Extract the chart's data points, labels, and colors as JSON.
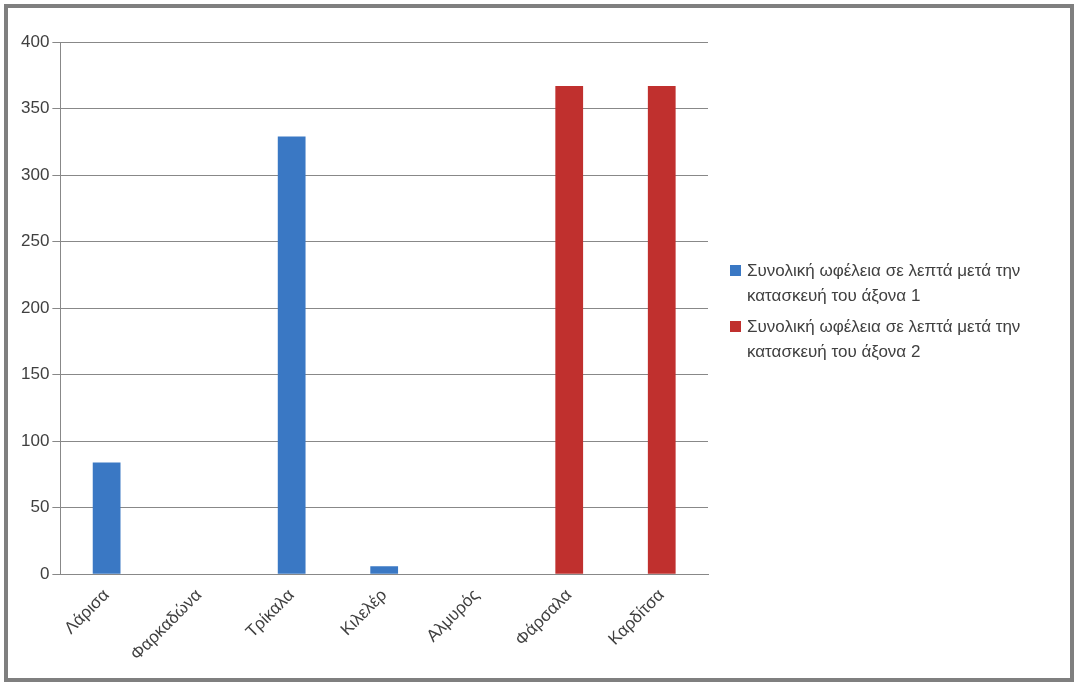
{
  "chart_data": {
    "type": "bar",
    "categories": [
      "Λάρισα",
      "Φαρκαδώνα",
      "Τρίκαλα",
      "Κιλελέρ",
      "Αλμυρός",
      "Φάρσαλα",
      "Καρδίτσα"
    ],
    "series": [
      {
        "name": "Συνολική ωφέλεια σε λεπτά μετά την κατασκευή του άξονα 1",
        "color": "#3a78c4",
        "values": [
          84,
          0,
          329,
          6,
          0,
          null,
          null
        ]
      },
      {
        "name": "Συνολική ωφέλεια σε λεπτά μετά την κατασκευή του άξονα 2",
        "color": "#c0302e",
        "values": [
          null,
          null,
          null,
          null,
          null,
          367,
          367
        ]
      }
    ],
    "ylim": [
      0,
      400
    ],
    "yticks": [
      0,
      50,
      100,
      150,
      200,
      250,
      300,
      350,
      400
    ],
    "grid": "y",
    "legend": "right"
  }
}
